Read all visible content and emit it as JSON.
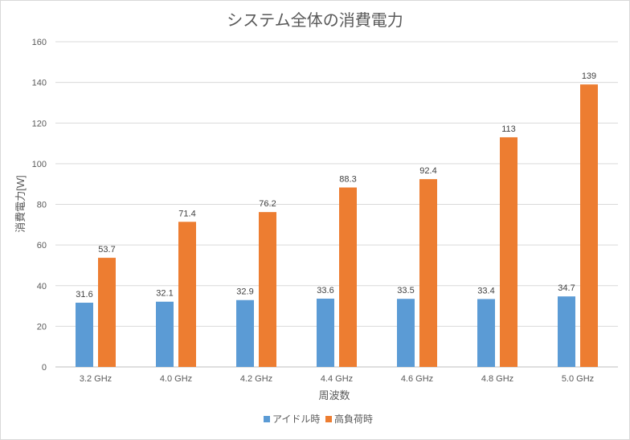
{
  "chart_data": {
    "type": "bar",
    "title": "システム全体の消費電力",
    "xlabel": "周波数",
    "ylabel": "消費電力[W]",
    "categories": [
      "3.2 GHz",
      "4.0 GHz",
      "4.2 GHz",
      "4.4 GHz",
      "4.6 GHz",
      "4.8 GHz",
      "5.0 GHz"
    ],
    "series": [
      {
        "name": "アイドル時",
        "color": "#5b9bd5",
        "values": [
          31.6,
          32.1,
          32.9,
          33.6,
          33.5,
          33.4,
          34.7
        ]
      },
      {
        "name": "高負荷時",
        "color": "#ed7d31",
        "values": [
          53.7,
          71.4,
          76.2,
          88.3,
          92.4,
          113,
          139
        ]
      }
    ],
    "ylim": [
      0,
      160
    ],
    "yticks": [
      0,
      20,
      40,
      60,
      80,
      100,
      120,
      140,
      160
    ],
    "grid": true,
    "legend": "bottom"
  }
}
